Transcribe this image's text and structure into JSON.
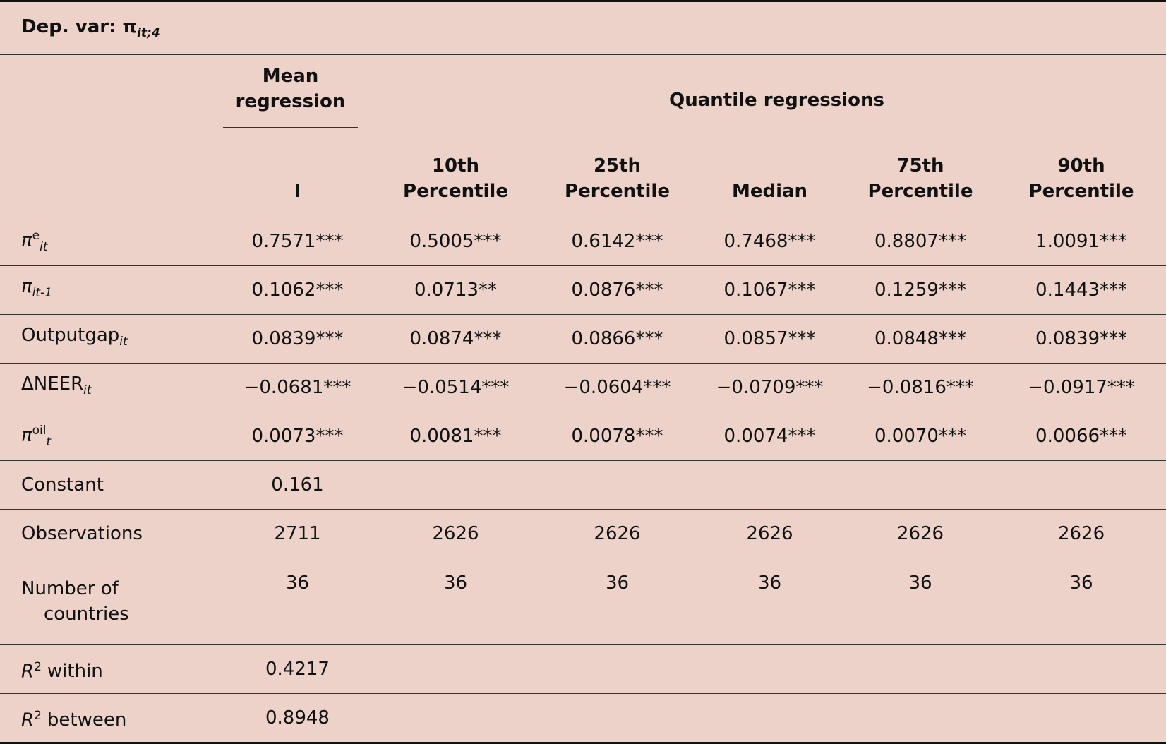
{
  "title": {
    "text": "Dep. var:",
    "symbol": "π",
    "sub": "it;4"
  },
  "header": {
    "group1": "Mean regression",
    "group2": "Quantile regressions",
    "columns": [
      "I",
      "10th Percentile",
      "25th Percentile",
      "Median",
      "75th Percentile",
      "90th Percentile"
    ]
  },
  "rows": [
    {
      "label": {
        "base": "π",
        "italic": true,
        "sup": "e",
        "sub": "it"
      },
      "cells": [
        "0.7571***",
        "0.5005***",
        "0.6142***",
        "0.7468***",
        "0.8807***",
        "1.0091***"
      ]
    },
    {
      "label": {
        "base": "π",
        "italic": true,
        "sub": "it-1"
      },
      "cells": [
        "0.1062***",
        "0.0713**",
        "0.0876***",
        "0.1067***",
        "0.1259***",
        "0.1443***"
      ]
    },
    {
      "label": {
        "base": "Outputgap",
        "sub": "it"
      },
      "cells": [
        "0.0839***",
        "0.0874***",
        "0.0866***",
        "0.0857***",
        "0.0848***",
        "0.0839***"
      ]
    },
    {
      "label": {
        "base": "ΔNEER",
        "sub": "it"
      },
      "cells": [
        "−0.0681***",
        "−0.0514***",
        "−0.0604***",
        "−0.0709***",
        "−0.0816***",
        "−0.0917***"
      ]
    },
    {
      "label": {
        "base": "π",
        "italic": true,
        "sup": "oil",
        "sub": "t"
      },
      "cells": [
        "0.0073***",
        "0.0081***",
        "0.0078***",
        "0.0074***",
        "0.0070***",
        "0.0066***"
      ]
    },
    {
      "label": {
        "base": "Constant"
      },
      "cells": [
        "0.161"
      ]
    },
    {
      "label": {
        "base": "Observations"
      },
      "cells": [
        "2711",
        "2626",
        "2626",
        "2626",
        "2626",
        "2626"
      ]
    },
    {
      "label": {
        "base": "Number of countries"
      },
      "cells": [
        "36",
        "36",
        "36",
        "36",
        "36",
        "36"
      ]
    },
    {
      "label": {
        "base": "R",
        "italic": true,
        "sup": "2",
        "rest": "within"
      },
      "cells": [
        "0.4217"
      ]
    },
    {
      "label": {
        "base": "R",
        "italic": true,
        "sup": "2",
        "rest": "between"
      },
      "cells": [
        "0.8948"
      ]
    }
  ]
}
